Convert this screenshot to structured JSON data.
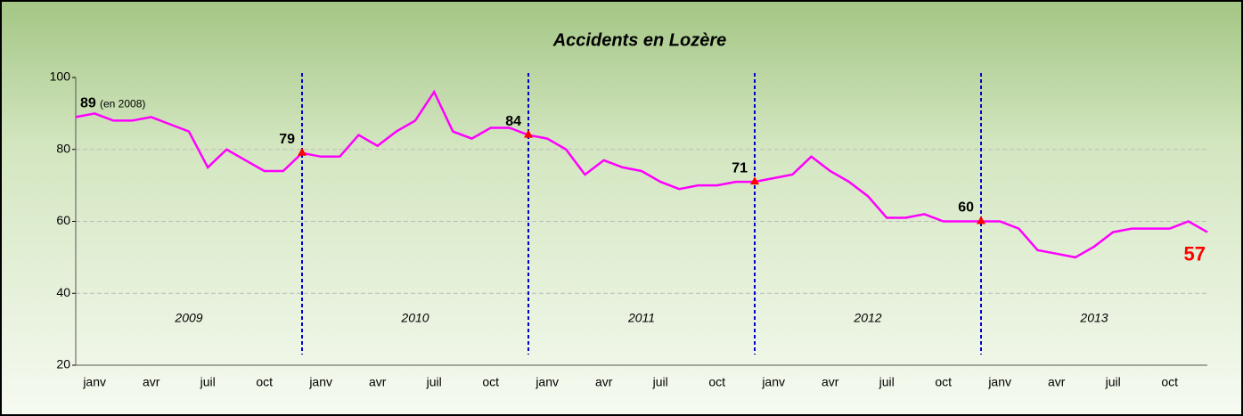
{
  "chart_data": {
    "type": "line",
    "title": "Accidents en Lozère",
    "categories": [
      null,
      "janv",
      null,
      null,
      "avr",
      null,
      null,
      "juil",
      null,
      null,
      "oct",
      null,
      null,
      "janv",
      null,
      null,
      "avr",
      null,
      null,
      "juil",
      null,
      null,
      "oct",
      null,
      null,
      "janv",
      null,
      null,
      "avr",
      null,
      null,
      "juil",
      null,
      null,
      "oct",
      null,
      null,
      "janv",
      null,
      null,
      "avr",
      null,
      null,
      "juil",
      null,
      null,
      "oct",
      null,
      null,
      "janv",
      null,
      null,
      "avr",
      null,
      null,
      "juil",
      null,
      null,
      "oct",
      null,
      null
    ],
    "series": [
      {
        "name": null,
        "color": "#ff00ff",
        "values": [
          89,
          90,
          88,
          88,
          89,
          87,
          85,
          75,
          80,
          77,
          74,
          74,
          79,
          78,
          78,
          84,
          81,
          85,
          88,
          96,
          85,
          83,
          86,
          86,
          84,
          83,
          80,
          73,
          77,
          75,
          74,
          71,
          69,
          70,
          70,
          71,
          71,
          72,
          73,
          78,
          74,
          71,
          67,
          61,
          61,
          62,
          60,
          60,
          60,
          60,
          58,
          52,
          51,
          50,
          53,
          57,
          58,
          58,
          58,
          60,
          57
        ]
      }
    ],
    "ylim": [
      20,
      100
    ],
    "yticks": [
      20,
      40,
      60,
      80,
      100
    ],
    "grid": true,
    "years": [
      "2009",
      "2010",
      "2011",
      "2012",
      "2013"
    ],
    "start_note": "(en 2008)",
    "labeled_points": [
      0,
      12,
      24,
      36,
      48,
      60
    ],
    "marked_points": [
      12,
      24,
      36,
      48
    ],
    "marker_color": "#ff0000",
    "divider_color": "#0000cc",
    "last_label_color": "#ff0000"
  }
}
